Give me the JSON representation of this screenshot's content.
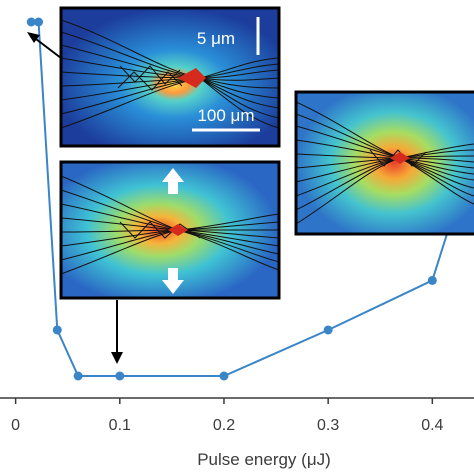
{
  "chart_data": {
    "type": "line",
    "xlabel": "Pulse energy (μJ)",
    "x_ticks": [
      "0",
      "0.1",
      "0.2",
      "0.3",
      "0.4"
    ],
    "xlim": [
      -0.015,
      0.44
    ],
    "ylim": [
      0,
      1
    ],
    "series": [
      {
        "x": [
          0.015,
          0.022,
          0.04,
          0.06,
          0.1,
          0.2,
          0.3,
          0.4,
          0.43
        ],
        "y": [
          1.0,
          1.0,
          0.13,
          0.0,
          0.0,
          0.0,
          0.13,
          0.27,
          0.55
        ],
        "color": "#3a85c8"
      }
    ],
    "grid": false
  },
  "insets": {
    "top": {
      "scale_bar_small": "5 μm",
      "scale_bar_large": "100 μm"
    },
    "middle": {},
    "right": {}
  },
  "colors": {
    "series": "#3a85c8",
    "frame": "#000000",
    "field_low": "#1f3fa0",
    "field_high": "#d42b1c"
  }
}
